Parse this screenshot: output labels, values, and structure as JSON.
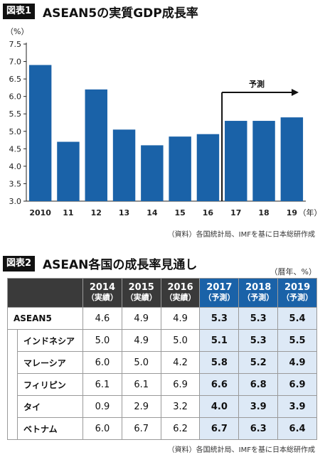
{
  "figure1": {
    "badge": "図表1",
    "title": "ASEAN5の実質GDP成長率",
    "source": "（資料）各国統計局、IMFを基に日本総研作成"
  },
  "chart_data": {
    "type": "bar",
    "categories": [
      "2010",
      "11",
      "12",
      "13",
      "14",
      "15",
      "16",
      "17",
      "18",
      "19"
    ],
    "values": [
      6.9,
      4.7,
      6.2,
      5.05,
      4.6,
      4.85,
      4.92,
      5.3,
      5.3,
      5.4
    ],
    "ylabel": "（%）",
    "xlabel": "（年）",
    "ylim": [
      3.0,
      7.5
    ],
    "yticks": [
      "3.0",
      "3.5",
      "4.0",
      "4.5",
      "5.0",
      "5.5",
      "6.0",
      "6.5",
      "7.0",
      "7.5"
    ],
    "grid": false,
    "bar_color": "#1a62a8",
    "annotation": "予測",
    "forecast_from": "17"
  },
  "figure2": {
    "badge": "図表2",
    "title": "ASEAN各国の成長率見通し",
    "unit": "（暦年、%）",
    "source": "（資料）各国統計局、IMFを基に日本総研作成",
    "header_color": "#3a3a3a",
    "forecast_header_color": "#1a62a8",
    "forecast_cell_color": "#dde9f6",
    "columns": [
      {
        "year": "2014",
        "note": "（実績）",
        "forecast": false
      },
      {
        "year": "2015",
        "note": "（実績）",
        "forecast": false
      },
      {
        "year": "2016",
        "note": "（実績）",
        "forecast": false
      },
      {
        "year": "2017",
        "note": "（予測）",
        "forecast": true
      },
      {
        "year": "2018",
        "note": "（予測）",
        "forecast": true
      },
      {
        "year": "2019",
        "note": "（予測）",
        "forecast": true
      }
    ],
    "rows": [
      {
        "name": "ASEAN5",
        "values": [
          "4.6",
          "4.9",
          "4.9",
          "5.3",
          "5.3",
          "5.4"
        ],
        "indent": false
      },
      {
        "name": "インドネシア",
        "values": [
          "5.0",
          "4.9",
          "5.0",
          "5.1",
          "5.3",
          "5.5"
        ],
        "indent": true
      },
      {
        "name": "マレーシア",
        "values": [
          "6.0",
          "5.0",
          "4.2",
          "5.8",
          "5.2",
          "4.9"
        ],
        "indent": true
      },
      {
        "name": "フィリピン",
        "values": [
          "6.1",
          "6.1",
          "6.9",
          "6.6",
          "6.8",
          "6.9"
        ],
        "indent": true
      },
      {
        "name": "タイ",
        "values": [
          "0.9",
          "2.9",
          "3.2",
          "4.0",
          "3.9",
          "3.9"
        ],
        "indent": true
      },
      {
        "name": "ベトナム",
        "values": [
          "6.0",
          "6.7",
          "6.2",
          "6.7",
          "6.3",
          "6.4"
        ],
        "indent": true
      }
    ]
  }
}
